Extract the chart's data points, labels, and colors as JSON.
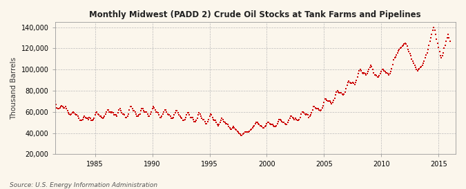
{
  "title": "Monthly Midwest (PADD 2) Crude Oil Stocks at Tank Farms and Pipelines",
  "ylabel": "Thousand Barrels",
  "source": "Source: U.S. Energy Information Administration",
  "background_color": "#FBF6EC",
  "plot_bg_color": "#FBF6EC",
  "line_color": "#CC0000",
  "marker": "s",
  "markersize": 1.8,
  "ylim": [
    20000,
    145000
  ],
  "yticks": [
    20000,
    40000,
    60000,
    80000,
    100000,
    120000,
    140000
  ],
  "ytick_labels": [
    "20,000",
    "40,000",
    "60,000",
    "80,000",
    "100,000",
    "120,000",
    "140,000"
  ],
  "start_year": 1981,
  "start_month": 7,
  "values": [
    70000,
    67000,
    64000,
    63000,
    63000,
    64000,
    65000,
    66000,
    65000,
    64000,
    64000,
    65000,
    63000,
    61000,
    59000,
    58000,
    57000,
    58000,
    59000,
    60000,
    59000,
    58000,
    57000,
    57000,
    56000,
    54000,
    52000,
    52000,
    52000,
    53000,
    55000,
    56000,
    55000,
    54000,
    54000,
    53000,
    55000,
    54000,
    52000,
    52000,
    53000,
    54000,
    57000,
    59000,
    60000,
    58000,
    57000,
    56000,
    56000,
    55000,
    54000,
    55000,
    56000,
    58000,
    60000,
    62000,
    62000,
    60000,
    60000,
    59000,
    60000,
    59000,
    57000,
    57000,
    57000,
    56000,
    59000,
    62000,
    63000,
    61000,
    59000,
    58000,
    58000,
    57000,
    55000,
    55000,
    56000,
    58000,
    62000,
    65000,
    65000,
    63000,
    61000,
    61000,
    60000,
    58000,
    56000,
    56000,
    57000,
    58000,
    61000,
    63000,
    63000,
    61000,
    60000,
    60000,
    60000,
    58000,
    56000,
    56000,
    58000,
    60000,
    63000,
    65000,
    64000,
    62000,
    60000,
    60000,
    59000,
    57000,
    55000,
    55000,
    56000,
    58000,
    60000,
    62000,
    62000,
    60000,
    58000,
    57000,
    57000,
    56000,
    54000,
    54000,
    55000,
    57000,
    59000,
    61000,
    61000,
    59000,
    57000,
    56000,
    55000,
    54000,
    52000,
    52000,
    53000,
    55000,
    57000,
    59000,
    59000,
    57000,
    55000,
    55000,
    55000,
    53000,
    51000,
    51000,
    52000,
    54000,
    57000,
    59000,
    58000,
    56000,
    54000,
    53000,
    53000,
    51000,
    49000,
    49000,
    51000,
    53000,
    56000,
    58000,
    57000,
    55000,
    53000,
    52000,
    52000,
    50000,
    48000,
    47000,
    48000,
    50000,
    52000,
    54000,
    53000,
    51000,
    50000,
    49000,
    49000,
    48000,
    46000,
    45000,
    44000,
    44000,
    45000,
    46000,
    45000,
    44000,
    43000,
    42000,
    41000,
    40000,
    39000,
    38000,
    38000,
    39000,
    40000,
    41000,
    41000,
    41000,
    41000,
    41000,
    42000,
    43000,
    44000,
    45000,
    46000,
    47000,
    49000,
    50000,
    50000,
    49000,
    48000,
    47000,
    47000,
    46000,
    45000,
    45000,
    46000,
    47000,
    49000,
    50000,
    50000,
    49000,
    48000,
    48000,
    48000,
    47000,
    46000,
    46000,
    47000,
    49000,
    51000,
    53000,
    53000,
    52000,
    51000,
    50000,
    50000,
    49000,
    48000,
    48000,
    50000,
    52000,
    54000,
    56000,
    56000,
    55000,
    54000,
    53000,
    54000,
    53000,
    52000,
    52000,
    53000,
    55000,
    58000,
    60000,
    60000,
    59000,
    58000,
    57000,
    58000,
    57000,
    55000,
    56000,
    57000,
    59000,
    62000,
    65000,
    65000,
    64000,
    63000,
    63000,
    63000,
    62000,
    61000,
    62000,
    64000,
    66000,
    69000,
    72000,
    72000,
    71000,
    70000,
    70000,
    70000,
    69000,
    68000,
    69000,
    71000,
    73000,
    76000,
    79000,
    80000,
    79000,
    78000,
    78000,
    78000,
    77000,
    76000,
    77000,
    79000,
    82000,
    85000,
    88000,
    89000,
    88000,
    87000,
    87000,
    88000,
    87000,
    86000,
    88000,
    90000,
    93000,
    96000,
    99000,
    100000,
    99000,
    97000,
    96000,
    97000,
    96000,
    95000,
    96000,
    98000,
    100000,
    102000,
    104000,
    103000,
    100000,
    97000,
    95000,
    95000,
    94000,
    93000,
    93000,
    94000,
    96000,
    98000,
    100000,
    100000,
    99000,
    98000,
    97000,
    97000,
    96000,
    95000,
    96000,
    98000,
    101000,
    105000,
    109000,
    111000,
    112000,
    114000,
    116000,
    118000,
    119000,
    120000,
    121000,
    122000,
    123000,
    124000,
    125000,
    124000,
    122000,
    119000,
    117000,
    115000,
    113000,
    110000,
    108000,
    106000,
    104000,
    102000,
    100000,
    99000,
    100000,
    101000,
    102000,
    103000,
    104000,
    106000,
    108000,
    111000,
    114000,
    116000,
    119000,
    123000,
    127000,
    130000,
    133000,
    137000,
    140000,
    137000,
    133000,
    129000,
    125000,
    121000,
    117000,
    113000,
    111000,
    113000,
    116000,
    120000,
    123000,
    127000,
    130000,
    133000,
    130000,
    127000
  ]
}
